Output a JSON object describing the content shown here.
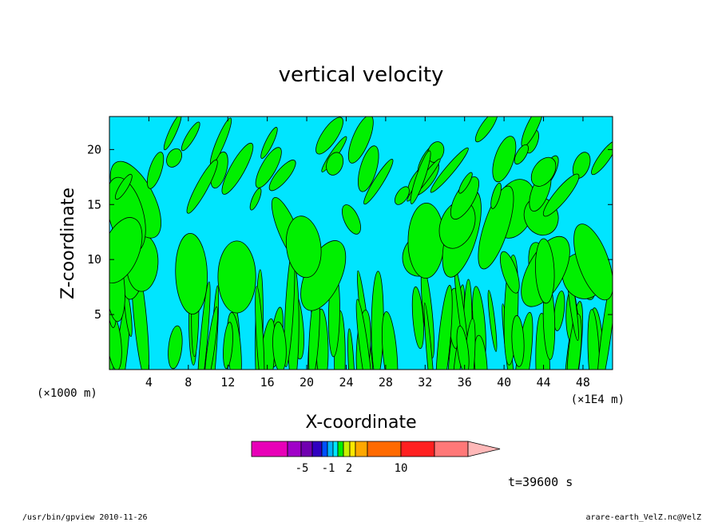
{
  "chart_data": {
    "type": "heatmap",
    "title": "vertical velocity",
    "xlabel": "X-coordinate",
    "ylabel": "Z-coordinate",
    "x_unit_left": "(×1000 m)",
    "x_unit_right": "(×1E4 m)",
    "xlim": [
      0,
      51
    ],
    "ylim": [
      0,
      23
    ],
    "x_ticks": [
      4,
      8,
      12,
      16,
      20,
      24,
      28,
      32,
      36,
      40,
      44,
      48
    ],
    "y_ticks": [
      5,
      10,
      15,
      20
    ],
    "grid": false,
    "field_colors": {
      "negative": "#00e5ff",
      "positive": "#00f000",
      "contour": "#000000"
    },
    "colorbar": {
      "colors": [
        "#e800b8",
        "#a000c8",
        "#7000b0",
        "#3000c0",
        "#0050ff",
        "#00b4ff",
        "#00e5ff",
        "#00f000",
        "#c8f000",
        "#ffe800",
        "#ffa800",
        "#ff6a00",
        "#ff2020",
        "#ff7878",
        "#ffb8b8"
      ],
      "tick_labels": [
        {
          "label": "-5",
          "value": -5
        },
        {
          "label": "-1",
          "value": -1
        },
        {
          "label": "2",
          "value": 2
        },
        {
          "label": "10",
          "value": 10
        }
      ]
    },
    "time_label": "t=39600 s"
  },
  "footer": {
    "left": "/usr/bin/gpview  2010-11-26",
    "right": "arare-earth_VelZ.nc@VelZ"
  }
}
